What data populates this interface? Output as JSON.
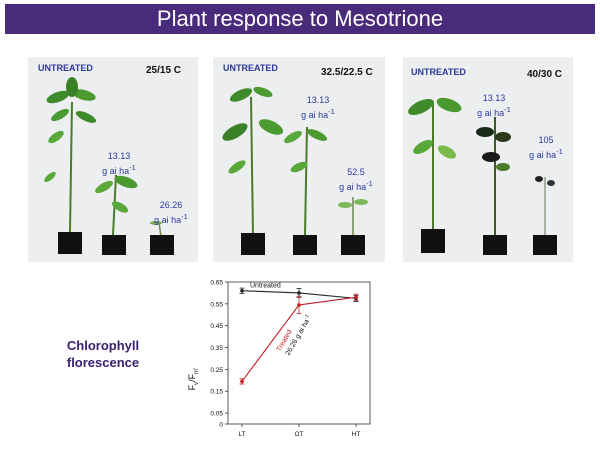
{
  "title": "Plant response to Mesotrione",
  "panels": [
    {
      "untreated": "UNTREATED",
      "temp": "25/15 C",
      "doses": [
        {
          "line1": "13.13",
          "line2": "g ai ha",
          "sup": "-1"
        },
        {
          "line1": "26.26",
          "line2": "g ai ha",
          "sup": "-1"
        }
      ]
    },
    {
      "untreated": "UNTREATED",
      "temp": "32.5/22.5 C",
      "doses": [
        {
          "line1": "13.13",
          "line2": "g ai ha",
          "sup": "-1"
        },
        {
          "line1": "52.5",
          "line2": "g ai ha",
          "sup": "-1"
        }
      ]
    },
    {
      "untreated": "UNTREATED",
      "temp": "40/30 C",
      "doses": [
        {
          "line1": "13.13",
          "line2": "g ai ha",
          "sup": "-1"
        },
        {
          "line1": "105",
          "line2": "g ai ha",
          "sup": "-1"
        }
      ]
    }
  ],
  "side_label": {
    "line1": "Chlorophyll",
    "line2": "florescence"
  },
  "colors": {
    "title_bg": "#4a2a7a",
    "label_blue": "#2b3a9c",
    "untreated_line": "#222222",
    "treated_line": "#c0202a"
  },
  "chart_data": {
    "type": "line",
    "x": [
      "LT",
      "OT",
      "HT"
    ],
    "ylabel": "Fv/Fm'",
    "ylim": [
      0,
      0.65
    ],
    "yticks": [
      "0",
      "0.05",
      "0.15",
      "0.25",
      "0.35",
      "0.45",
      "0.55",
      "0.65"
    ],
    "series": [
      {
        "name": "Untreated",
        "values": [
          0.61,
          0.6,
          0.575
        ]
      },
      {
        "name": "Treated",
        "name2": "26.26 g ai ha",
        "name2_sup": "-1",
        "values": [
          0.195,
          0.545,
          0.58
        ]
      }
    ]
  }
}
